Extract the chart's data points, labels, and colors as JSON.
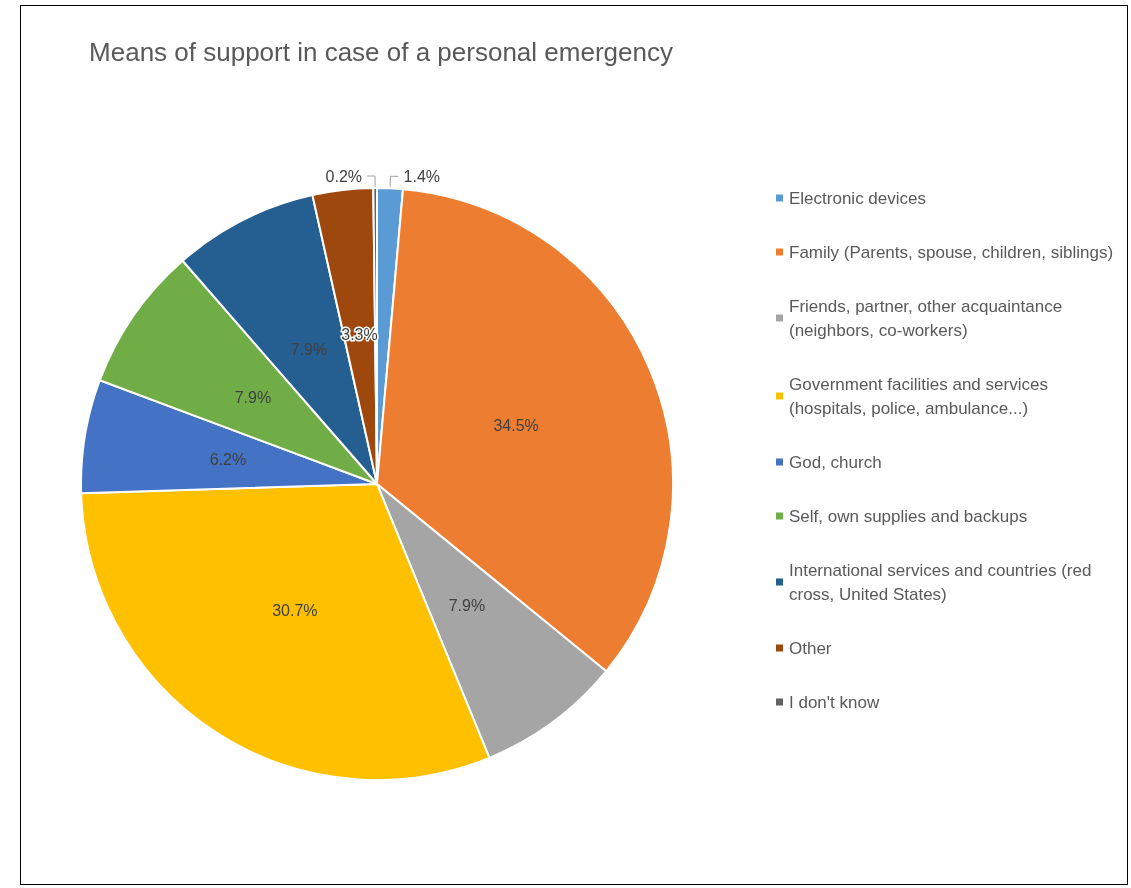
{
  "chart_data": {
    "type": "pie",
    "title": "Means of support in case of a personal emergency",
    "categories": [
      "Electronic devices",
      "Family (Parents, spouse, children, siblings)",
      "Friends, partner, other acquaintance (neighbors, co-workers)",
      "Government facilities and services (hospitals, police, ambulance...)",
      "God, church",
      "Self, own supplies and backups",
      "International services and countries (red cross, United States)",
      "Other",
      "I don't know"
    ],
    "values": [
      1.4,
      34.5,
      7.9,
      30.7,
      6.2,
      7.9,
      7.9,
      3.3,
      0.2
    ],
    "value_labels": [
      "1.4%",
      "34.5%",
      "7.9%",
      "30.7%",
      "6.2%",
      "7.9%",
      "7.9%",
      "3.3%",
      "0.2%"
    ],
    "colors": [
      "#5b9bd5",
      "#ed7d31",
      "#a5a5a5",
      "#ffc000",
      "#4472c4",
      "#70ad47",
      "#255e91",
      "#9e480e",
      "#636363"
    ],
    "legend": "right"
  }
}
